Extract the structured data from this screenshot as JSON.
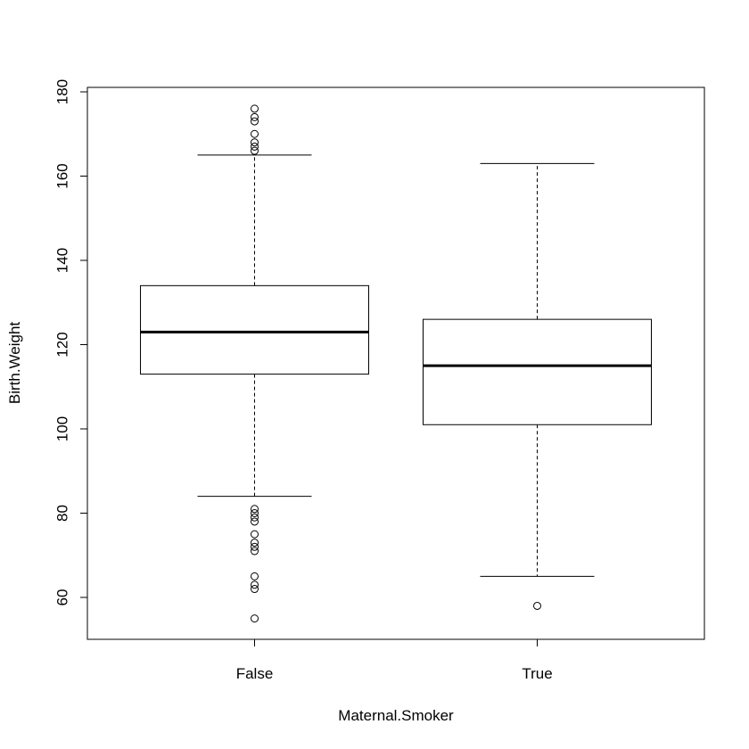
{
  "chart_data": {
    "type": "boxplot",
    "xlabel": "Maternal.Smoker",
    "ylabel": "Birth.Weight",
    "ylim": [
      50,
      182
    ],
    "y_ticks": [
      60,
      80,
      100,
      120,
      140,
      160,
      180
    ],
    "grid": false,
    "categories": [
      "False",
      "True"
    ],
    "boxes": [
      {
        "category": "False",
        "whisker_low": 84,
        "q1": 113,
        "median": 123,
        "q3": 134,
        "whisker_high": 165,
        "outliers": [
          55,
          62,
          63,
          65,
          71,
          72,
          73,
          75,
          78,
          79,
          80,
          81,
          166,
          167,
          168,
          170,
          173,
          174,
          176
        ]
      },
      {
        "category": "True",
        "whisker_low": 65,
        "q1": 101,
        "median": 115,
        "q3": 126,
        "whisker_high": 163,
        "outliers": [
          58
        ]
      }
    ]
  }
}
